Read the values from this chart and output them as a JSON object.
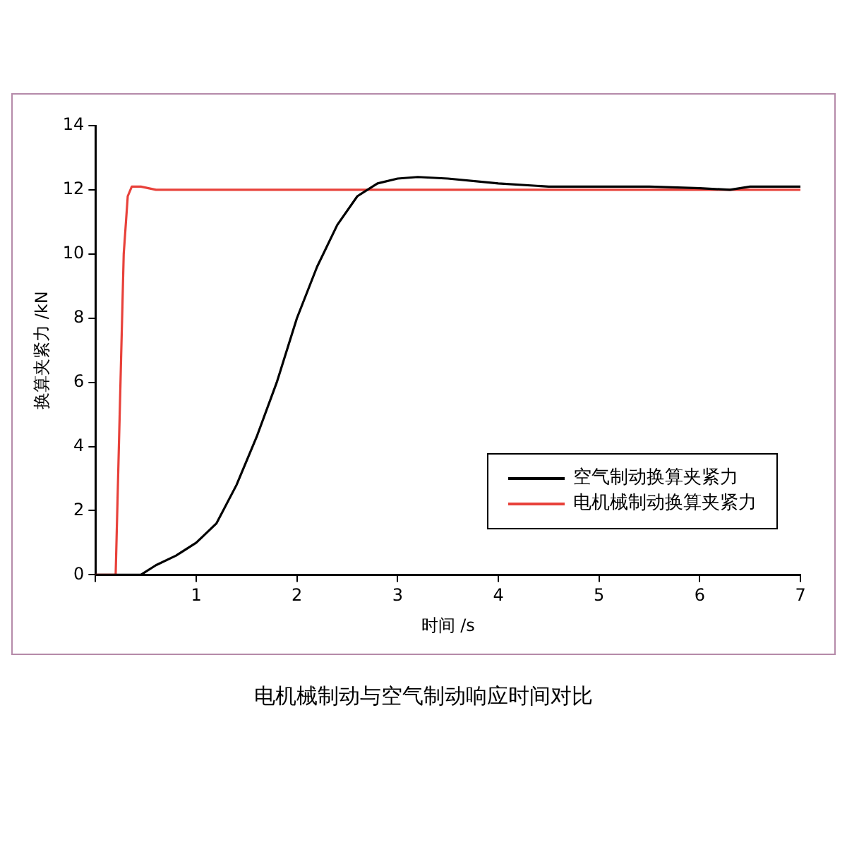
{
  "chart_data": {
    "type": "line",
    "title": "电机械制动与空气制动响应时间对比",
    "xlabel": "时间 /s",
    "ylabel": "换算夹紧力 /kN",
    "xlim": [
      0,
      7
    ],
    "ylim": [
      0,
      14
    ],
    "xticks": [
      {
        "value": 0,
        "label": null
      },
      1,
      2,
      3,
      4,
      5,
      6,
      7
    ],
    "yticks": [
      0,
      2,
      4,
      6,
      8,
      10,
      12,
      14
    ],
    "grid": false,
    "legend": "bottom right",
    "marker": "none",
    "line_style": "solid",
    "series": [
      {
        "name": "空气制动换算夹紧力",
        "color": "#000000",
        "x": [
          0,
          0.45,
          0.6,
          0.8,
          1.0,
          1.2,
          1.4,
          1.6,
          1.8,
          2.0,
          2.2,
          2.4,
          2.6,
          2.8,
          3.0,
          3.2,
          3.5,
          4.0,
          4.5,
          5.0,
          5.5,
          6.0,
          6.3,
          6.5,
          7.0
        ],
        "values": [
          0,
          0,
          0.3,
          0.6,
          1.0,
          1.6,
          2.8,
          4.3,
          6.0,
          8.0,
          9.6,
          10.9,
          11.8,
          12.2,
          12.35,
          12.4,
          12.35,
          12.2,
          12.1,
          12.1,
          12.1,
          12.05,
          12.0,
          12.1,
          12.1
        ]
      },
      {
        "name": "电机械制动换算夹紧力",
        "color": "#e8413a",
        "x": [
          0,
          0.2,
          0.28,
          0.32,
          0.36,
          0.45,
          0.6,
          7.0
        ],
        "values": [
          0,
          0,
          10,
          11.8,
          12.1,
          12.1,
          12.0,
          12.0
        ]
      }
    ]
  }
}
